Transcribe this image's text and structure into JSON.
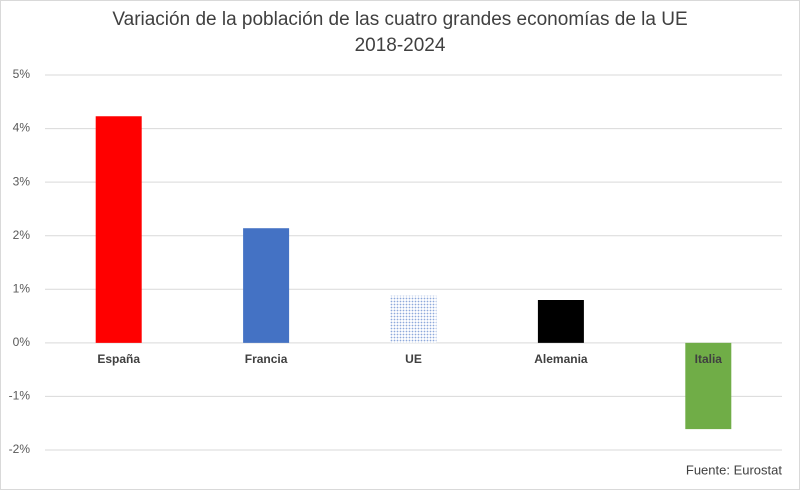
{
  "chart_data": {
    "type": "bar",
    "title": "Variación de la población de las cuatro grandes economías de la UE",
    "subtitle": "2018-2024",
    "categories": [
      "España",
      "Francia",
      "UE",
      "Alemania",
      "Italia"
    ],
    "values": [
      4.23,
      2.14,
      0.88,
      0.8,
      -1.61
    ],
    "colors": [
      "#ff0000",
      "#4472c4",
      "#8ea9db",
      "#000000",
      "#70ad47"
    ],
    "dotted": [
      false,
      false,
      true,
      false,
      false
    ],
    "ylim": [
      -2,
      5
    ],
    "yticks": [
      {
        "value": -2,
        "label": "-2%"
      },
      {
        "value": -1,
        "label": "-1%"
      },
      {
        "value": 0,
        "label": "0%"
      },
      {
        "value": 1,
        "label": "1%"
      },
      {
        "value": 2,
        "label": "2%"
      },
      {
        "value": 3,
        "label": "3%"
      },
      {
        "value": 4,
        "label": "4%"
      },
      {
        "value": 5,
        "label": "5%"
      }
    ],
    "grid": true,
    "source": "Fuente: Eurostat"
  }
}
